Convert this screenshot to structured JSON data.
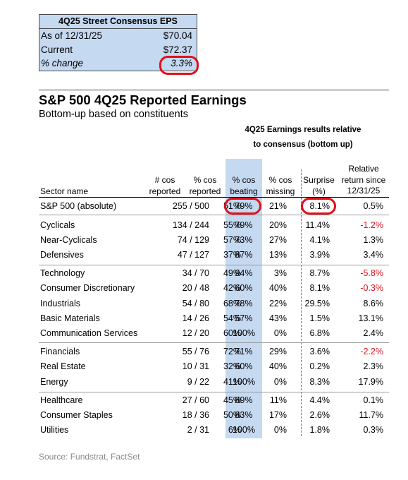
{
  "eps_box": {
    "title": "4Q25 Street Consensus EPS",
    "rows": [
      {
        "label": "As of 12/31/25",
        "value": "$70.04"
      },
      {
        "label": "Current",
        "value": "$72.37"
      },
      {
        "label": "% change",
        "value": "3.3%"
      }
    ]
  },
  "title": "S&P 500 4Q25 Reported Earnings",
  "subtitle": "Bottom-up based on constituents",
  "results_heading": [
    "4Q25 Earnings results relative",
    "to consensus (bottom up)"
  ],
  "columns": {
    "sector": "Sector name",
    "reported": [
      "# cos",
      "reported"
    ],
    "pct_reported": [
      "% cos",
      "reported"
    ],
    "beating": [
      "% cos",
      "beating"
    ],
    "missing": [
      "% cos",
      "missing"
    ],
    "surprise": [
      "Surprise",
      "(%)"
    ],
    "relative": [
      "Relative",
      "return since",
      "12/31/25"
    ]
  },
  "highlight_color": "#e0111b",
  "band_color": "#c5d9f1",
  "rows": [
    {
      "name": "S&P 500 (absolute)",
      "reported": "255 / 500",
      "pct_reported": "51%",
      "beating": "79%",
      "missing": "21%",
      "surprise": "8.1%",
      "relative": "0.5%"
    },
    {
      "name": "Cyclicals",
      "reported": "134 / 244",
      "pct_reported": "55%",
      "beating": "79%",
      "missing": "20%",
      "surprise": "11.4%",
      "relative": "-1.2%"
    },
    {
      "name": "Near-Cyclicals",
      "reported": "74 / 129",
      "pct_reported": "57%",
      "beating": "73%",
      "missing": "27%",
      "surprise": "4.1%",
      "relative": "1.3%"
    },
    {
      "name": "Defensives",
      "reported": "47 / 127",
      "pct_reported": "37%",
      "beating": "87%",
      "missing": "13%",
      "surprise": "3.9%",
      "relative": "3.4%"
    },
    {
      "name": "Technology",
      "reported": "34 / 70",
      "pct_reported": "49%",
      "beating": "94%",
      "missing": "3%",
      "surprise": "8.7%",
      "relative": "-5.8%"
    },
    {
      "name": "Consumer Discretionary",
      "reported": "20 / 48",
      "pct_reported": "42%",
      "beating": "60%",
      "missing": "40%",
      "surprise": "8.1%",
      "relative": "-0.3%"
    },
    {
      "name": "Industrials",
      "reported": "54 / 80",
      "pct_reported": "68%",
      "beating": "78%",
      "missing": "22%",
      "surprise": "29.5%",
      "relative": "8.6%"
    },
    {
      "name": "Basic Materials",
      "reported": "14 / 26",
      "pct_reported": "54%",
      "beating": "57%",
      "missing": "43%",
      "surprise": "1.5%",
      "relative": "13.1%"
    },
    {
      "name": "Communication Services",
      "reported": "12 / 20",
      "pct_reported": "60%",
      "beating": "100%",
      "missing": "0%",
      "surprise": "6.8%",
      "relative": "2.4%"
    },
    {
      "name": "Financials",
      "reported": "55 / 76",
      "pct_reported": "72%",
      "beating": "71%",
      "missing": "29%",
      "surprise": "3.6%",
      "relative": "-2.2%"
    },
    {
      "name": "Real Estate",
      "reported": "10 / 31",
      "pct_reported": "32%",
      "beating": "60%",
      "missing": "40%",
      "surprise": "0.2%",
      "relative": "2.3%"
    },
    {
      "name": "Energy",
      "reported": "9 / 22",
      "pct_reported": "41%",
      "beating": "100%",
      "missing": "0%",
      "surprise": "8.3%",
      "relative": "17.9%"
    },
    {
      "name": "Healthcare",
      "reported": "27 / 60",
      "pct_reported": "45%",
      "beating": "89%",
      "missing": "11%",
      "surprise": "4.4%",
      "relative": "0.1%"
    },
    {
      "name": "Consumer Staples",
      "reported": "18 / 36",
      "pct_reported": "50%",
      "beating": "83%",
      "missing": "17%",
      "surprise": "2.6%",
      "relative": "11.7%"
    },
    {
      "name": "Utilities",
      "reported": "2 / 31",
      "pct_reported": "6%",
      "beating": "100%",
      "missing": "0%",
      "surprise": "1.8%",
      "relative": "0.3%"
    }
  ],
  "source": "Source: Fundstrat, FactSet"
}
